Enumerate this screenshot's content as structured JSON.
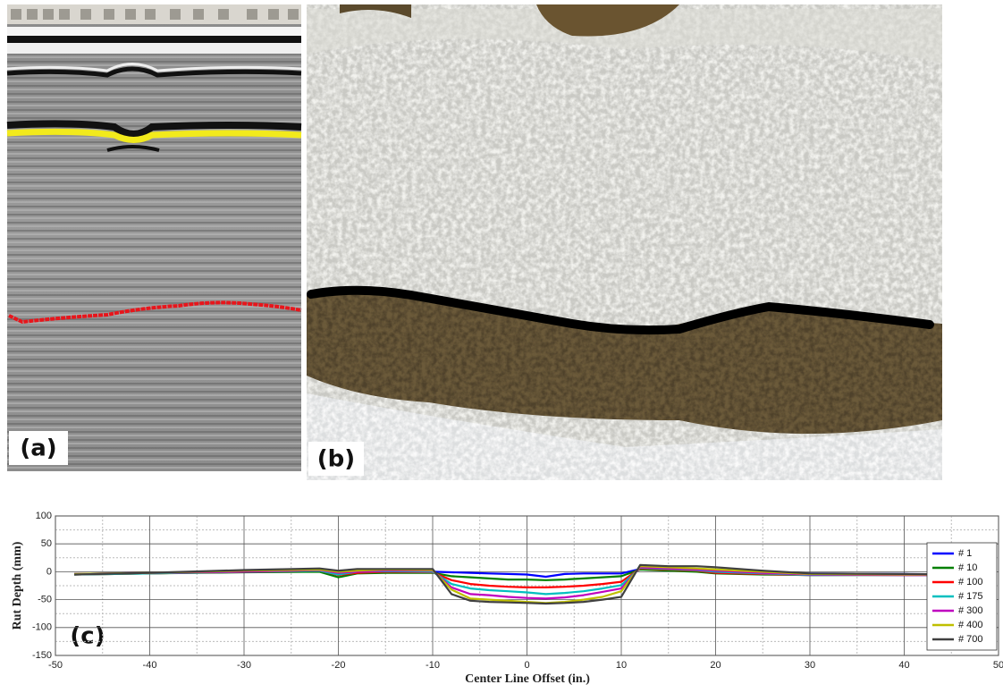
{
  "panels": {
    "a": {
      "label": "(a)"
    },
    "b": {
      "label": "(b)"
    }
  },
  "chart_data": {
    "type": "line",
    "panel_label": "(c)",
    "x_label": "Center Line Offset (in.)",
    "y_label": "Rut Depth (mm)",
    "x": [
      -48,
      -40,
      -30,
      -22,
      -20,
      -18,
      -15,
      -10,
      -8,
      -6,
      -4,
      -2,
      0,
      2,
      4,
      6,
      8,
      10,
      12,
      15,
      18,
      20,
      25,
      30,
      40,
      48
    ],
    "series": [
      {
        "name": "# 1",
        "color": "#0000ff",
        "values": [
          -4,
          -2,
          0,
          2,
          -3,
          -1,
          0,
          0,
          -1,
          -2,
          -3,
          -4,
          -5,
          -9,
          -4,
          -3,
          -3,
          -3,
          5,
          3,
          2,
          0,
          -2,
          -3,
          -4,
          -5
        ]
      },
      {
        "name": "# 10",
        "color": "#008000",
        "values": [
          -5,
          -3,
          -1,
          0,
          -10,
          -3,
          -2,
          -2,
          -8,
          -10,
          -12,
          -14,
          -14,
          -15,
          -14,
          -12,
          -10,
          -8,
          4,
          2,
          0,
          -3,
          -5,
          -6,
          -5,
          -5
        ]
      },
      {
        "name": "# 100",
        "color": "#ff0000",
        "values": [
          -5,
          -3,
          0,
          2,
          -6,
          -2,
          0,
          -1,
          -15,
          -22,
          -25,
          -27,
          -28,
          -28,
          -27,
          -25,
          -22,
          -18,
          6,
          4,
          2,
          -2,
          -4,
          -6,
          -6,
          -6
        ]
      },
      {
        "name": "# 175",
        "color": "#00bfbf",
        "values": [
          -5,
          -3,
          0,
          2,
          -5,
          0,
          1,
          0,
          -22,
          -30,
          -33,
          -35,
          -37,
          -40,
          -38,
          -35,
          -30,
          -24,
          7,
          5,
          3,
          0,
          -3,
          -6,
          -6,
          -6
        ]
      },
      {
        "name": "# 300",
        "color": "#bf00bf",
        "values": [
          -4,
          -2,
          0,
          3,
          -2,
          0,
          2,
          2,
          -28,
          -40,
          -42,
          -45,
          -47,
          -48,
          -46,
          -42,
          -36,
          -30,
          8,
          6,
          4,
          2,
          -2,
          -5,
          -6,
          -6
        ]
      },
      {
        "name": "# 400",
        "color": "#bfbf00",
        "values": [
          -4,
          -2,
          2,
          4,
          0,
          2,
          4,
          3,
          -32,
          -48,
          -50,
          -52,
          -54,
          -56,
          -54,
          -50,
          -45,
          -35,
          10,
          8,
          6,
          4,
          0,
          -4,
          -5,
          -5
        ]
      },
      {
        "name": "# 700",
        "color": "#404040",
        "values": [
          -5,
          -2,
          3,
          6,
          2,
          5,
          5,
          5,
          -40,
          -52,
          -54,
          -55,
          -56,
          -57,
          -56,
          -54,
          -50,
          -45,
          12,
          10,
          10,
          8,
          2,
          -3,
          -4,
          -5
        ]
      }
    ],
    "xlim": [
      -50,
      50
    ],
    "xticks": [
      -50,
      -40,
      -30,
      -20,
      -10,
      0,
      10,
      20,
      30,
      40,
      50
    ],
    "ylim": [
      -150,
      100
    ],
    "yticks": [
      -150,
      -100,
      -50,
      0,
      50,
      100
    ],
    "grid": true,
    "legend": "right"
  }
}
